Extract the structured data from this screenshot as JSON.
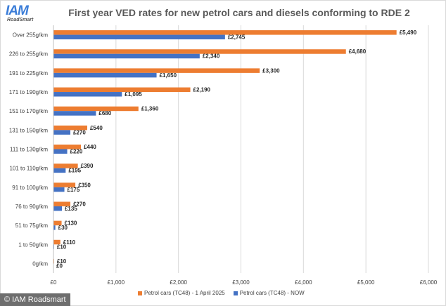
{
  "header": {
    "logo_text": "IAM",
    "logo_subtext": "RoadSmart",
    "title": "First year VED rates for new petrol cars and diesels conforming to RDE 2"
  },
  "footer": {
    "credit": "© IAM Roadsmart"
  },
  "colors": {
    "series_future": "#ed7d31",
    "series_now": "#4472c4",
    "grid": "#d9d9d9",
    "text": "#404040"
  },
  "chart_data": {
    "type": "bar",
    "orientation": "horizontal",
    "title": "First year VED rates for new petrol cars and diesels conforming to RDE 2",
    "categories": [
      "Over 255g/km",
      "226 to 255g/km",
      "191 to 225g/km",
      "171 to 190g/km",
      "151 to 170g/km",
      "131 to 150g/km",
      "111 to 130g/km",
      "101 to 110g/km",
      "91 to 100g/km",
      "76 to 90g/km",
      "51 to 75g/km",
      "1 to 50g/km",
      "0g/km"
    ],
    "series": [
      {
        "name": "Petrol cars (TC48) - 1 April 2025",
        "values": [
          5490,
          4680,
          3300,
          2190,
          1360,
          540,
          440,
          390,
          350,
          270,
          130,
          110,
          10
        ],
        "labels": [
          "£5,490",
          "£4,680",
          "£3,300",
          "£2,190",
          "£1,360",
          "£540",
          "£440",
          "£390",
          "£350",
          "£270",
          "£130",
          "£110",
          "£10"
        ]
      },
      {
        "name": "Petrol cars (TC48) - NOW",
        "values": [
          2745,
          2340,
          1650,
          1095,
          680,
          270,
          220,
          195,
          175,
          135,
          30,
          10,
          0
        ],
        "labels": [
          "£2,745",
          "£2,340",
          "£1,650",
          "£1,095",
          "£680",
          "£270",
          "£220",
          "£195",
          "£175",
          "£135",
          "£30",
          "£10",
          "£0"
        ]
      }
    ],
    "xlim": [
      0,
      6000
    ],
    "xticks": [
      0,
      1000,
      2000,
      3000,
      4000,
      5000,
      6000
    ],
    "xtick_labels": [
      "£0",
      "£1,000",
      "£2,000",
      "£3,000",
      "£4,000",
      "£5,000",
      "£6,000"
    ],
    "grid": true,
    "legend_position": "bottom"
  }
}
